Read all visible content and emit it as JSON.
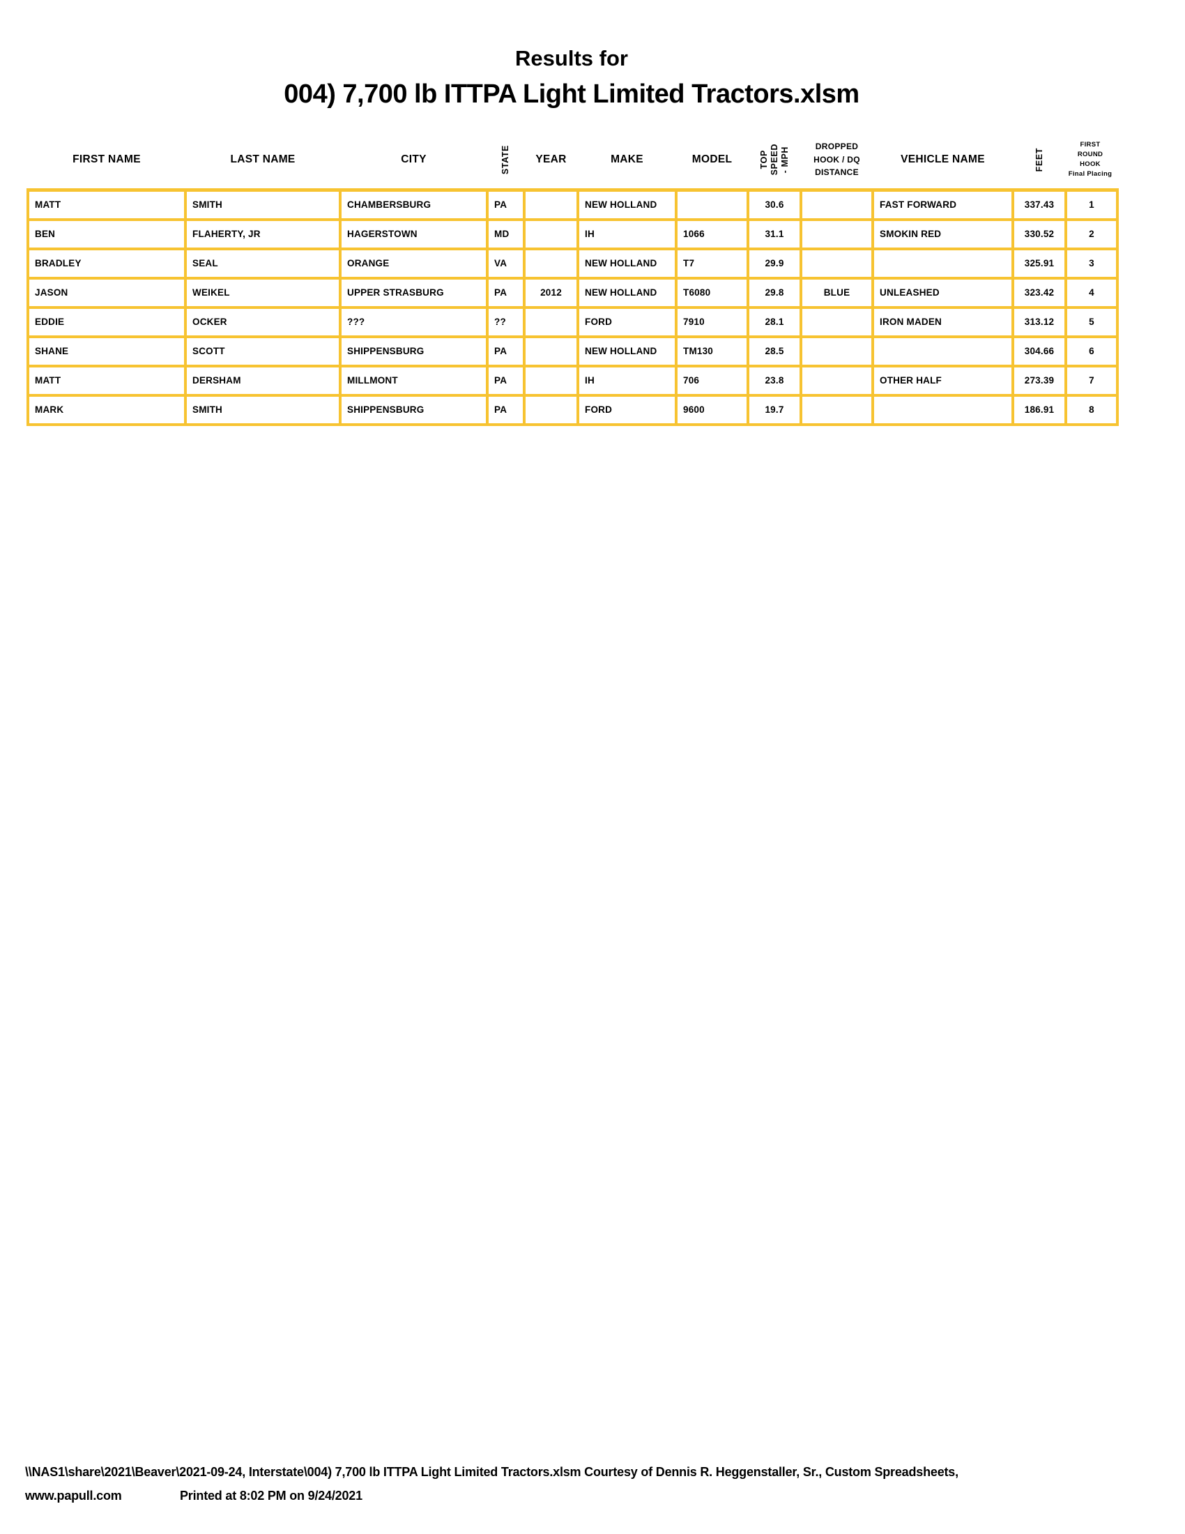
{
  "title": {
    "line1": "Results for",
    "line2": "004) 7,700 lb ITTPA Light Limited Tractors.xlsm"
  },
  "colors": {
    "grid_yellow": "#F7C331",
    "text": "#000000",
    "background": "#FFFFFF"
  },
  "table": {
    "columns": [
      {
        "key": "first_name",
        "label": "FIRST NAME"
      },
      {
        "key": "last_name",
        "label": "LAST NAME"
      },
      {
        "key": "city",
        "label": "CITY"
      },
      {
        "key": "state",
        "label": "STATE"
      },
      {
        "key": "year",
        "label": "YEAR"
      },
      {
        "key": "make",
        "label": "MAKE"
      },
      {
        "key": "model",
        "label": "MODEL"
      },
      {
        "key": "top_speed",
        "label": "TOP\nSPEED\n- MPH"
      },
      {
        "key": "dropped",
        "label": "DROPPED\nHOOK / DQ\nDISTANCE"
      },
      {
        "key": "vehicle_name",
        "label": "VEHICLE NAME"
      },
      {
        "key": "feet",
        "label": "FEET"
      },
      {
        "key": "placing",
        "label": "FIRST ROUND\nHOOK\nFinal Placing"
      }
    ],
    "rows": [
      {
        "first_name": "MATT",
        "last_name": "SMITH",
        "city": "CHAMBERSBURG",
        "state": "PA",
        "year": "",
        "make": "NEW HOLLAND",
        "model": "",
        "top_speed": "30.6",
        "dropped": "",
        "vehicle_name": "FAST FORWARD",
        "feet": "337.43",
        "placing": "1"
      },
      {
        "first_name": "BEN",
        "last_name": "FLAHERTY, JR",
        "city": "HAGERSTOWN",
        "state": "MD",
        "year": "",
        "make": "IH",
        "model": "1066",
        "top_speed": "31.1",
        "dropped": "",
        "vehicle_name": "SMOKIN RED",
        "feet": "330.52",
        "placing": "2"
      },
      {
        "first_name": "BRADLEY",
        "last_name": "SEAL",
        "city": "ORANGE",
        "state": "VA",
        "year": "",
        "make": "NEW HOLLAND",
        "model": "T7",
        "top_speed": "29.9",
        "dropped": "",
        "vehicle_name": "",
        "feet": "325.91",
        "placing": "3"
      },
      {
        "first_name": "JASON",
        "last_name": "WEIKEL",
        "city": "UPPER STRASBURG",
        "state": "PA",
        "year": "2012",
        "make": "NEW HOLLAND",
        "model": "T6080",
        "top_speed": "29.8",
        "dropped": "BLUE",
        "vehicle_name": "UNLEASHED",
        "feet": "323.42",
        "placing": "4"
      },
      {
        "first_name": "EDDIE",
        "last_name": "OCKER",
        "city": "???",
        "state": "??",
        "year": "",
        "make": "FORD",
        "model": "7910",
        "top_speed": "28.1",
        "dropped": "",
        "vehicle_name": "IRON MADEN",
        "feet": "313.12",
        "placing": "5"
      },
      {
        "first_name": "SHANE",
        "last_name": "SCOTT",
        "city": "SHIPPENSBURG",
        "state": "PA",
        "year": "",
        "make": "NEW HOLLAND",
        "model": "TM130",
        "top_speed": "28.5",
        "dropped": "",
        "vehicle_name": "",
        "feet": "304.66",
        "placing": "6"
      },
      {
        "first_name": "MATT",
        "last_name": "DERSHAM",
        "city": "MILLMONT",
        "state": "PA",
        "year": "",
        "make": "IH",
        "model": "706",
        "top_speed": "23.8",
        "dropped": "",
        "vehicle_name": "OTHER HALF",
        "feet": "273.39",
        "placing": "7"
      },
      {
        "first_name": "MARK",
        "last_name": "SMITH",
        "city": "SHIPPENSBURG",
        "state": "PA",
        "year": "",
        "make": "FORD",
        "model": "9600",
        "top_speed": "19.7",
        "dropped": "",
        "vehicle_name": "",
        "feet": "186.91",
        "placing": "8"
      }
    ]
  },
  "footer": {
    "line1": "\\\\NAS1\\share\\2021\\Beaver\\2021-09-24, Interstate\\004) 7,700 lb ITTPA Light Limited Tractors.xlsm  Courtesy of Dennis R. Heggenstaller, Sr., Custom Spreadsheets,",
    "website": "www.papull.com",
    "printed": "Printed at 8:02 PM on 9/24/2021"
  }
}
